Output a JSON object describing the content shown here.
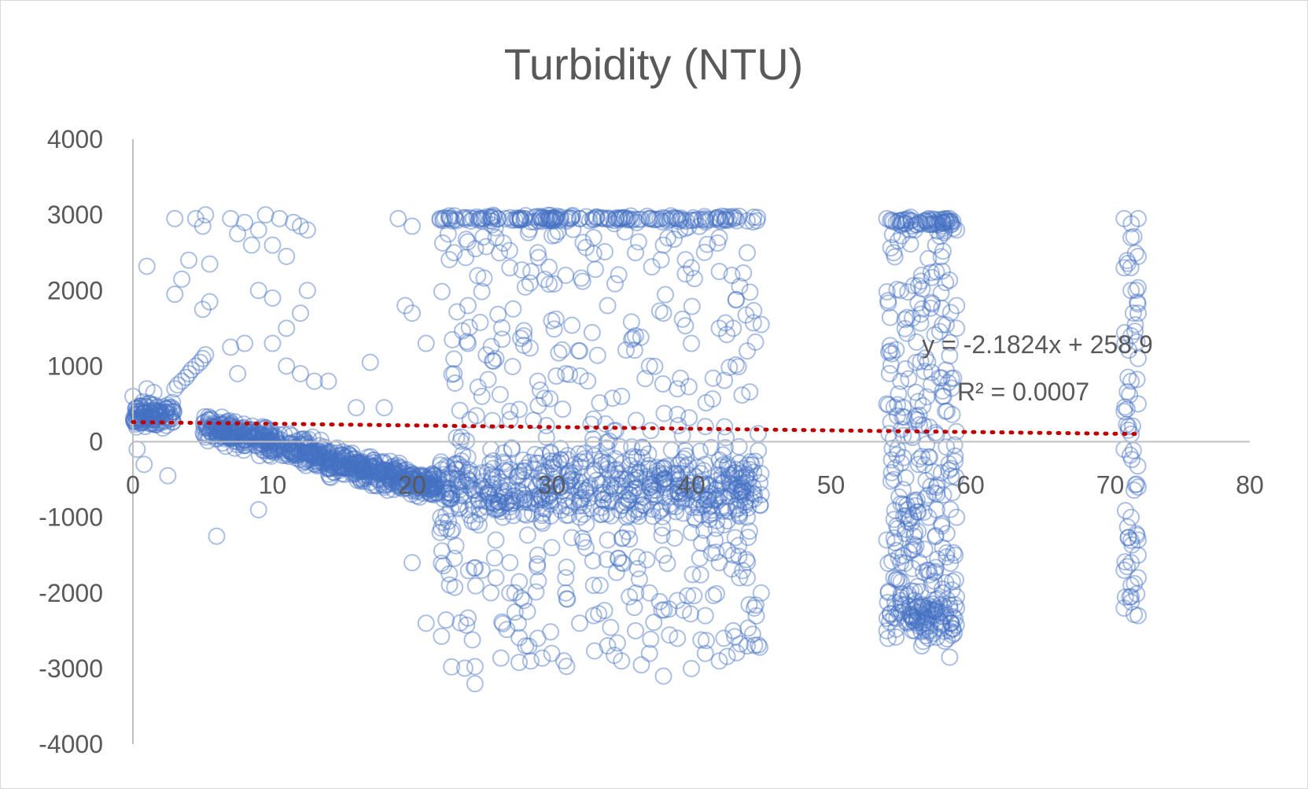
{
  "chart_data": {
    "type": "scatter",
    "title": "Turbidity (NTU)",
    "xlabel": "",
    "ylabel": "",
    "xlim": [
      0,
      80
    ],
    "ylim": [
      -4000,
      4000
    ],
    "x_ticks": [
      "0",
      "10",
      "20",
      "30",
      "40",
      "50",
      "60",
      "70",
      "80"
    ],
    "y_ticks": [
      "4000",
      "3000",
      "2000",
      "1000",
      "0",
      "-1000",
      "-2000",
      "-3000",
      "-4000"
    ],
    "grid": false,
    "legend": "none",
    "marker": "open-circle",
    "marker_color": "#4472c4",
    "trendline": {
      "type": "linear",
      "color": "#c00000",
      "style": "dotted",
      "slope": -2.1824,
      "intercept": 258.9,
      "x_range": [
        0,
        72
      ],
      "equation_label": "y = -2.1824x + 258.9",
      "r2_label": "R² = 0.0007"
    },
    "series": [
      {
        "values_description": "",
        "points": [
          [
            0,
            600
          ],
          [
            0.3,
            -100
          ],
          [
            0.5,
            300
          ],
          [
            0.8,
            -300
          ],
          [
            1,
            700
          ],
          [
            1.2,
            500
          ],
          [
            1.5,
            650
          ],
          [
            1,
            2320
          ],
          [
            2,
            250
          ],
          [
            2.5,
            -450
          ],
          [
            3,
            2950
          ],
          [
            3,
            1950
          ],
          [
            3.5,
            2150
          ],
          [
            4,
            2400
          ],
          [
            4.5,
            2950
          ],
          [
            5,
            2850
          ],
          [
            5.2,
            3000
          ],
          [
            5.5,
            2350
          ],
          [
            5,
            1750
          ],
          [
            5.5,
            1850
          ],
          [
            3,
            700
          ],
          [
            3.2,
            750
          ],
          [
            3.5,
            800
          ],
          [
            3.8,
            850
          ],
          [
            4,
            900
          ],
          [
            4.2,
            950
          ],
          [
            4.5,
            1000
          ],
          [
            4.8,
            1050
          ],
          [
            5,
            1100
          ],
          [
            5.2,
            1150
          ],
          [
            6,
            -1250
          ],
          [
            7,
            2950
          ],
          [
            7.5,
            2750
          ],
          [
            8,
            2900
          ],
          [
            8.5,
            2600
          ],
          [
            9,
            2800
          ],
          [
            9.5,
            3000
          ],
          [
            10,
            2600
          ],
          [
            10.5,
            2950
          ],
          [
            11,
            2450
          ],
          [
            11.5,
            2900
          ],
          [
            12,
            2850
          ],
          [
            12.5,
            2800
          ],
          [
            9,
            2000
          ],
          [
            10,
            1900
          ],
          [
            11,
            1500
          ],
          [
            12,
            1700
          ],
          [
            12.5,
            2000
          ],
          [
            11,
            1000
          ],
          [
            12,
            900
          ],
          [
            10,
            1300
          ],
          [
            8,
            1300
          ],
          [
            7,
            1250
          ],
          [
            7.5,
            900
          ],
          [
            9,
            -900
          ],
          [
            13,
            800
          ],
          [
            14,
            800
          ],
          [
            17,
            1050
          ],
          [
            16,
            450
          ],
          [
            18,
            450
          ],
          [
            19,
            2950
          ],
          [
            19.5,
            1800
          ],
          [
            20,
            1700
          ],
          [
            20,
            2850
          ],
          [
            21,
            1300
          ],
          [
            21,
            -2400
          ],
          [
            20,
            -1600
          ],
          [
            22,
            2950
          ],
          [
            23,
            2500
          ],
          [
            24,
            1800
          ],
          [
            24.5,
            -3200
          ],
          [
            25,
            -1700
          ],
          [
            26,
            -1800
          ],
          [
            27,
            -2000
          ],
          [
            28,
            -2100
          ],
          [
            28.5,
            -2900
          ],
          [
            29,
            -2600
          ],
          [
            30,
            -2800
          ],
          [
            31,
            -2000
          ],
          [
            32,
            -2400
          ],
          [
            25,
            2950
          ],
          [
            26,
            2700
          ],
          [
            27,
            2300
          ],
          [
            28,
            2950
          ],
          [
            29,
            2500
          ],
          [
            30,
            2950
          ],
          [
            31,
            2200
          ],
          [
            32,
            2950
          ],
          [
            33,
            2700
          ],
          [
            34,
            2950
          ],
          [
            33,
            -2300
          ],
          [
            34,
            -2700
          ],
          [
            35,
            -2900
          ],
          [
            36,
            -2500
          ],
          [
            37,
            -2800
          ],
          [
            38,
            -3100
          ],
          [
            39,
            -2600
          ],
          [
            40,
            -3000
          ],
          [
            41,
            -2800
          ],
          [
            42,
            -2900
          ],
          [
            35,
            2950
          ],
          [
            36,
            2500
          ],
          [
            37,
            2950
          ],
          [
            38,
            2600
          ],
          [
            39,
            2950
          ],
          [
            40,
            2300
          ],
          [
            41,
            2950
          ],
          [
            42,
            2700
          ],
          [
            43,
            2950
          ],
          [
            44,
            2500
          ],
          [
            43,
            -2500
          ],
          [
            44,
            -2700
          ],
          [
            44.5,
            -2200
          ],
          [
            45,
            -2000
          ],
          [
            43,
            -1500
          ],
          [
            44,
            -1000
          ],
          [
            45,
            -700
          ],
          [
            43,
            1500
          ],
          [
            44,
            1200
          ],
          [
            45,
            1550
          ],
          [
            27,
            400
          ],
          [
            29,
            800
          ],
          [
            31,
            900
          ],
          [
            33,
            300
          ],
          [
            35,
            600
          ],
          [
            37,
            1000
          ],
          [
            39,
            700
          ],
          [
            41,
            200
          ],
          [
            23,
            900
          ],
          [
            25,
            600
          ],
          [
            28,
            1400
          ],
          [
            30,
            1600
          ],
          [
            32,
            1200
          ],
          [
            34,
            1800
          ],
          [
            36,
            1400
          ],
          [
            38,
            1700
          ],
          [
            40,
            1300
          ],
          [
            42,
            1500
          ],
          [
            26,
            1100
          ],
          [
            24,
            1300
          ],
          [
            22,
            -1200
          ],
          [
            24,
            -900
          ],
          [
            26,
            -1300
          ],
          [
            28,
            -800
          ],
          [
            30,
            -1400
          ],
          [
            32,
            -1000
          ],
          [
            34,
            -1300
          ],
          [
            36,
            -900
          ],
          [
            38,
            -1500
          ],
          [
            40,
            -1200
          ],
          [
            42,
            -1600
          ],
          [
            44,
            -1800
          ],
          [
            27,
            -1600
          ],
          [
            31,
            -1800
          ],
          [
            35,
            -1600
          ],
          [
            39,
            -2100
          ],
          [
            41,
            -2300
          ],
          [
            37,
            -2000
          ],
          [
            33,
            -1900
          ],
          [
            29,
            -1500
          ],
          [
            54,
            2950
          ],
          [
            54.5,
            2500
          ],
          [
            55,
            2000
          ],
          [
            55.5,
            2950
          ],
          [
            56,
            2800
          ],
          [
            56.5,
            2200
          ],
          [
            57,
            2950
          ],
          [
            57.5,
            2600
          ],
          [
            58,
            2900
          ],
          [
            58.5,
            2950
          ],
          [
            59,
            2800
          ],
          [
            54,
            500
          ],
          [
            55,
            800
          ],
          [
            56,
            300
          ],
          [
            57,
            -200
          ],
          [
            58,
            600
          ],
          [
            59,
            1800
          ],
          [
            59,
            1500
          ],
          [
            54.5,
            -500
          ],
          [
            55.5,
            -900
          ],
          [
            54,
            -1300
          ],
          [
            54.5,
            -1800
          ],
          [
            55,
            -2100
          ],
          [
            55.5,
            -2400
          ],
          [
            56,
            -2500
          ],
          [
            56.5,
            -2700
          ],
          [
            57,
            -2600
          ],
          [
            57.5,
            -2300
          ],
          [
            58,
            -2000
          ],
          [
            58.5,
            -2500
          ],
          [
            59,
            -2200
          ],
          [
            58.5,
            -2850
          ],
          [
            54,
            -2500
          ],
          [
            57,
            -1700
          ],
          [
            56,
            -1200
          ],
          [
            58,
            -1400
          ],
          [
            59,
            -1000
          ],
          [
            55,
            -1600
          ],
          [
            57,
            -1000
          ],
          [
            56,
            -800
          ],
          [
            71,
            2950
          ],
          [
            71.5,
            2700
          ],
          [
            72,
            2950
          ],
          [
            71,
            2300
          ],
          [
            72,
            2450
          ],
          [
            71.5,
            2000
          ],
          [
            72,
            1700
          ],
          [
            71.5,
            1400
          ],
          [
            72,
            1100
          ],
          [
            71.5,
            800
          ],
          [
            72,
            500
          ],
          [
            71,
            400
          ],
          [
            71.5,
            100
          ],
          [
            71,
            -100
          ],
          [
            72,
            -600
          ],
          [
            71.5,
            -1000
          ],
          [
            72,
            -1300
          ],
          [
            71.5,
            -1600
          ],
          [
            72,
            -1800
          ],
          [
            71,
            -1700
          ],
          [
            71.5,
            -1900
          ],
          [
            71,
            -2200
          ],
          [
            72,
            -2300
          ],
          [
            71.5,
            -2050
          ],
          [
            72,
            -1500
          ]
        ]
      }
    ]
  }
}
